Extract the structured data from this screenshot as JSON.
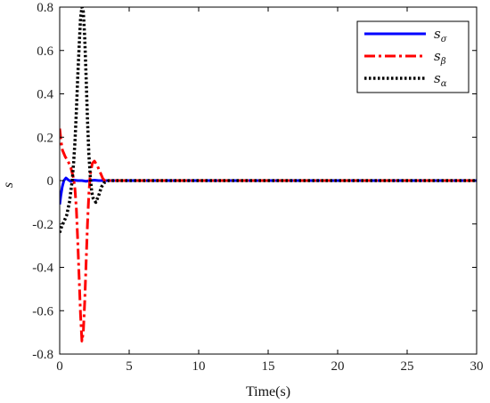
{
  "chart_data": {
    "type": "line",
    "xlabel": "Time(s)",
    "ylabel": "s",
    "xlim": [
      0,
      30
    ],
    "ylim": [
      -0.8,
      0.8
    ],
    "xticks": [
      "0",
      "5",
      "10",
      "15",
      "20",
      "25",
      "30"
    ],
    "yticks": [
      "-0.8",
      "-0.6",
      "-0.4",
      "-0.2",
      "0",
      "0.2",
      "0.4",
      "0.6",
      "0.8"
    ],
    "grid": false,
    "legend_position": "top-right",
    "series": [
      {
        "name": "s",
        "subscript": "σ",
        "color": "#0000ff",
        "style": "solid",
        "x": [
          0,
          0.08,
          0.18,
          0.3,
          0.45,
          0.6,
          0.8,
          1.0,
          1.3,
          1.6,
          1.9,
          2.2,
          2.5,
          2.8,
          3.5,
          5,
          10,
          15,
          20,
          25,
          30
        ],
        "y": [
          -0.11,
          -0.07,
          -0.03,
          0.0,
          0.012,
          0.004,
          -0.004,
          0.002,
          0.0,
          0.0,
          -0.003,
          0.0,
          0.002,
          0.0,
          0.0,
          0.0,
          0.0,
          0.0,
          0.0,
          0.0,
          0.0
        ]
      },
      {
        "name": "s",
        "subscript": "β",
        "color": "#ff0000",
        "style": "dashdot",
        "x": [
          0,
          0.1,
          0.2,
          0.4,
          0.6,
          0.8,
          1.0,
          1.1,
          1.2,
          1.3,
          1.4,
          1.5,
          1.6,
          1.7,
          1.8,
          1.9,
          2.0,
          2.1,
          2.2,
          2.35,
          2.5,
          2.7,
          2.9,
          3.1,
          3.3,
          3.5,
          4,
          5,
          10,
          15,
          20,
          25,
          30
        ],
        "y": [
          0.24,
          0.18,
          0.14,
          0.11,
          0.09,
          0.06,
          0.01,
          -0.04,
          -0.13,
          -0.28,
          -0.45,
          -0.62,
          -0.74,
          -0.7,
          -0.56,
          -0.38,
          -0.2,
          -0.06,
          0.03,
          0.08,
          0.09,
          0.07,
          0.04,
          0.01,
          -0.005,
          0.0,
          0.0,
          0.0,
          0.0,
          0.0,
          0.0,
          0.0,
          0.0
        ]
      },
      {
        "name": "s",
        "subscript": "α",
        "color": "#000000",
        "style": "dotted",
        "x": [
          0,
          0.15,
          0.3,
          0.5,
          0.7,
          0.9,
          1.0,
          1.1,
          1.2,
          1.3,
          1.4,
          1.5,
          1.6,
          1.7,
          1.8,
          1.9,
          2.0,
          2.1,
          2.2,
          2.3,
          2.4,
          2.6,
          2.8,
          3.0,
          3.2,
          3.5,
          4,
          5,
          10,
          15,
          20,
          25,
          30
        ],
        "y": [
          -0.24,
          -0.21,
          -0.19,
          -0.16,
          -0.1,
          0.0,
          0.08,
          0.18,
          0.32,
          0.48,
          0.62,
          0.75,
          0.8,
          0.78,
          0.66,
          0.48,
          0.28,
          0.12,
          0.02,
          -0.05,
          -0.08,
          -0.1,
          -0.07,
          -0.03,
          -0.01,
          0.0,
          0.0,
          0.0,
          0.0,
          0.0,
          0.0,
          0.0,
          0.0
        ]
      }
    ]
  }
}
